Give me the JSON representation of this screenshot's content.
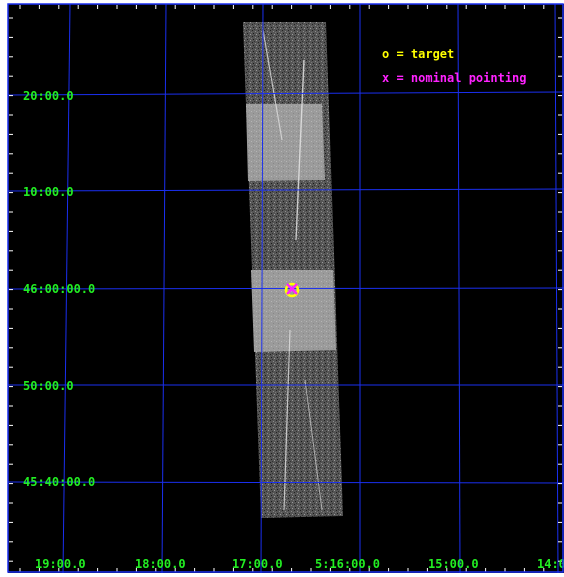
{
  "sky_image": {
    "background_color": "#000000",
    "grid_color": "#1a2ff0",
    "label_color": "#22ee22",
    "y_labels": [
      "20:00.0",
      "10:00.0",
      "46:00:00.0",
      "50:00.0",
      "45:40:00.0"
    ],
    "x_labels": [
      "19:00.0",
      "18:00.0",
      "17:00.0",
      "5:16:00.0",
      "15:00.0",
      "14:0"
    ]
  },
  "legend": {
    "target_text": "o = target",
    "target_color": "#ffff00",
    "pointing_text": "x = nominal pointing",
    "pointing_color": "#ff22ff"
  }
}
